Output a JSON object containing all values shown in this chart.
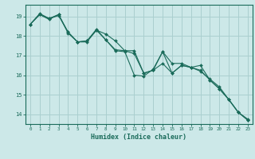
{
  "xlabel": "Humidex (Indice chaleur)",
  "bg_color": "#cce8e8",
  "grid_color": "#aacfcf",
  "line_color": "#1a6b5a",
  "xlim": [
    -0.5,
    23.5
  ],
  "ylim": [
    13.5,
    19.6
  ],
  "xticks": [
    0,
    1,
    2,
    3,
    4,
    5,
    6,
    7,
    8,
    9,
    10,
    11,
    12,
    13,
    14,
    15,
    16,
    17,
    18,
    19,
    20,
    21,
    22,
    23
  ],
  "yticks": [
    14,
    15,
    16,
    17,
    18,
    19
  ],
  "series1": {
    "x": [
      0,
      1,
      2,
      3,
      4,
      5,
      6,
      7,
      8,
      9,
      10,
      11,
      12,
      13,
      14,
      15,
      16,
      17,
      18,
      19,
      20,
      21,
      22,
      23
    ],
    "y": [
      18.6,
      19.1,
      18.9,
      19.1,
      18.2,
      17.7,
      17.7,
      18.3,
      18.1,
      17.75,
      17.25,
      17.25,
      16.1,
      16.25,
      16.6,
      16.1,
      16.5,
      16.4,
      16.2,
      15.8,
      15.4,
      14.75,
      14.1,
      13.7
    ]
  },
  "series2": {
    "x": [
      0,
      1,
      2,
      3,
      4,
      5,
      6,
      7,
      8,
      9,
      10,
      11,
      12,
      13,
      14,
      15,
      16,
      17,
      18,
      19,
      20,
      21,
      22,
      23
    ],
    "y": [
      18.6,
      19.1,
      18.85,
      19.1,
      18.15,
      17.7,
      17.75,
      18.35,
      17.8,
      17.25,
      17.2,
      16.0,
      15.95,
      16.3,
      17.2,
      16.6,
      16.6,
      16.4,
      16.5,
      15.75,
      15.3,
      14.75,
      14.1,
      13.75
    ]
  },
  "series3": {
    "x": [
      0,
      1,
      2,
      3,
      4,
      5,
      6,
      7,
      8,
      9,
      10,
      11,
      12,
      13,
      14,
      15,
      16,
      17,
      18,
      19,
      20,
      21,
      22,
      23
    ],
    "y": [
      18.6,
      19.15,
      18.9,
      19.05,
      18.2,
      17.7,
      17.75,
      18.3,
      17.8,
      17.3,
      17.25,
      17.1,
      16.1,
      16.25,
      17.2,
      16.1,
      16.5,
      16.4,
      16.25,
      15.75,
      15.3,
      14.75,
      14.1,
      13.7
    ]
  }
}
